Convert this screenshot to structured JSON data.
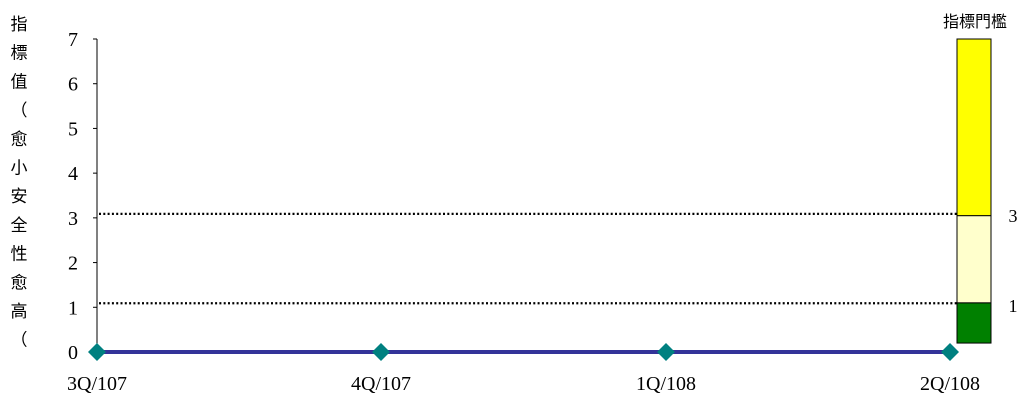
{
  "chart_data": {
    "type": "line",
    "ylabel": "指標值（愈小安全性愈高（",
    "categories": [
      "3Q/107",
      "4Q/107",
      "1Q/108",
      "2Q/108"
    ],
    "series": [
      {
        "values": [
          0,
          0,
          0,
          0
        ],
        "line_color": "#333399",
        "marker": "diamond",
        "marker_color": "#008080"
      }
    ],
    "ylim": [
      0,
      7
    ],
    "yticks": [
      "0",
      "1",
      "2",
      "3",
      "4",
      "5",
      "6",
      "7"
    ],
    "reference_lines": [
      {
        "value": 1,
        "style": "dotted"
      },
      {
        "value": 3,
        "style": "dotted"
      }
    ],
    "threshold_bar": {
      "title": "指標門檻",
      "bands": [
        {
          "from": 0.2,
          "to": 1.1,
          "color": "#008000"
        },
        {
          "from": 1.1,
          "to": 3.05,
          "color": "#FFFFCC"
        },
        {
          "from": 3.05,
          "to": 7,
          "color": "#FFFF00"
        }
      ],
      "labels": [
        "1",
        "3"
      ]
    },
    "grid": false,
    "legend": "none"
  }
}
